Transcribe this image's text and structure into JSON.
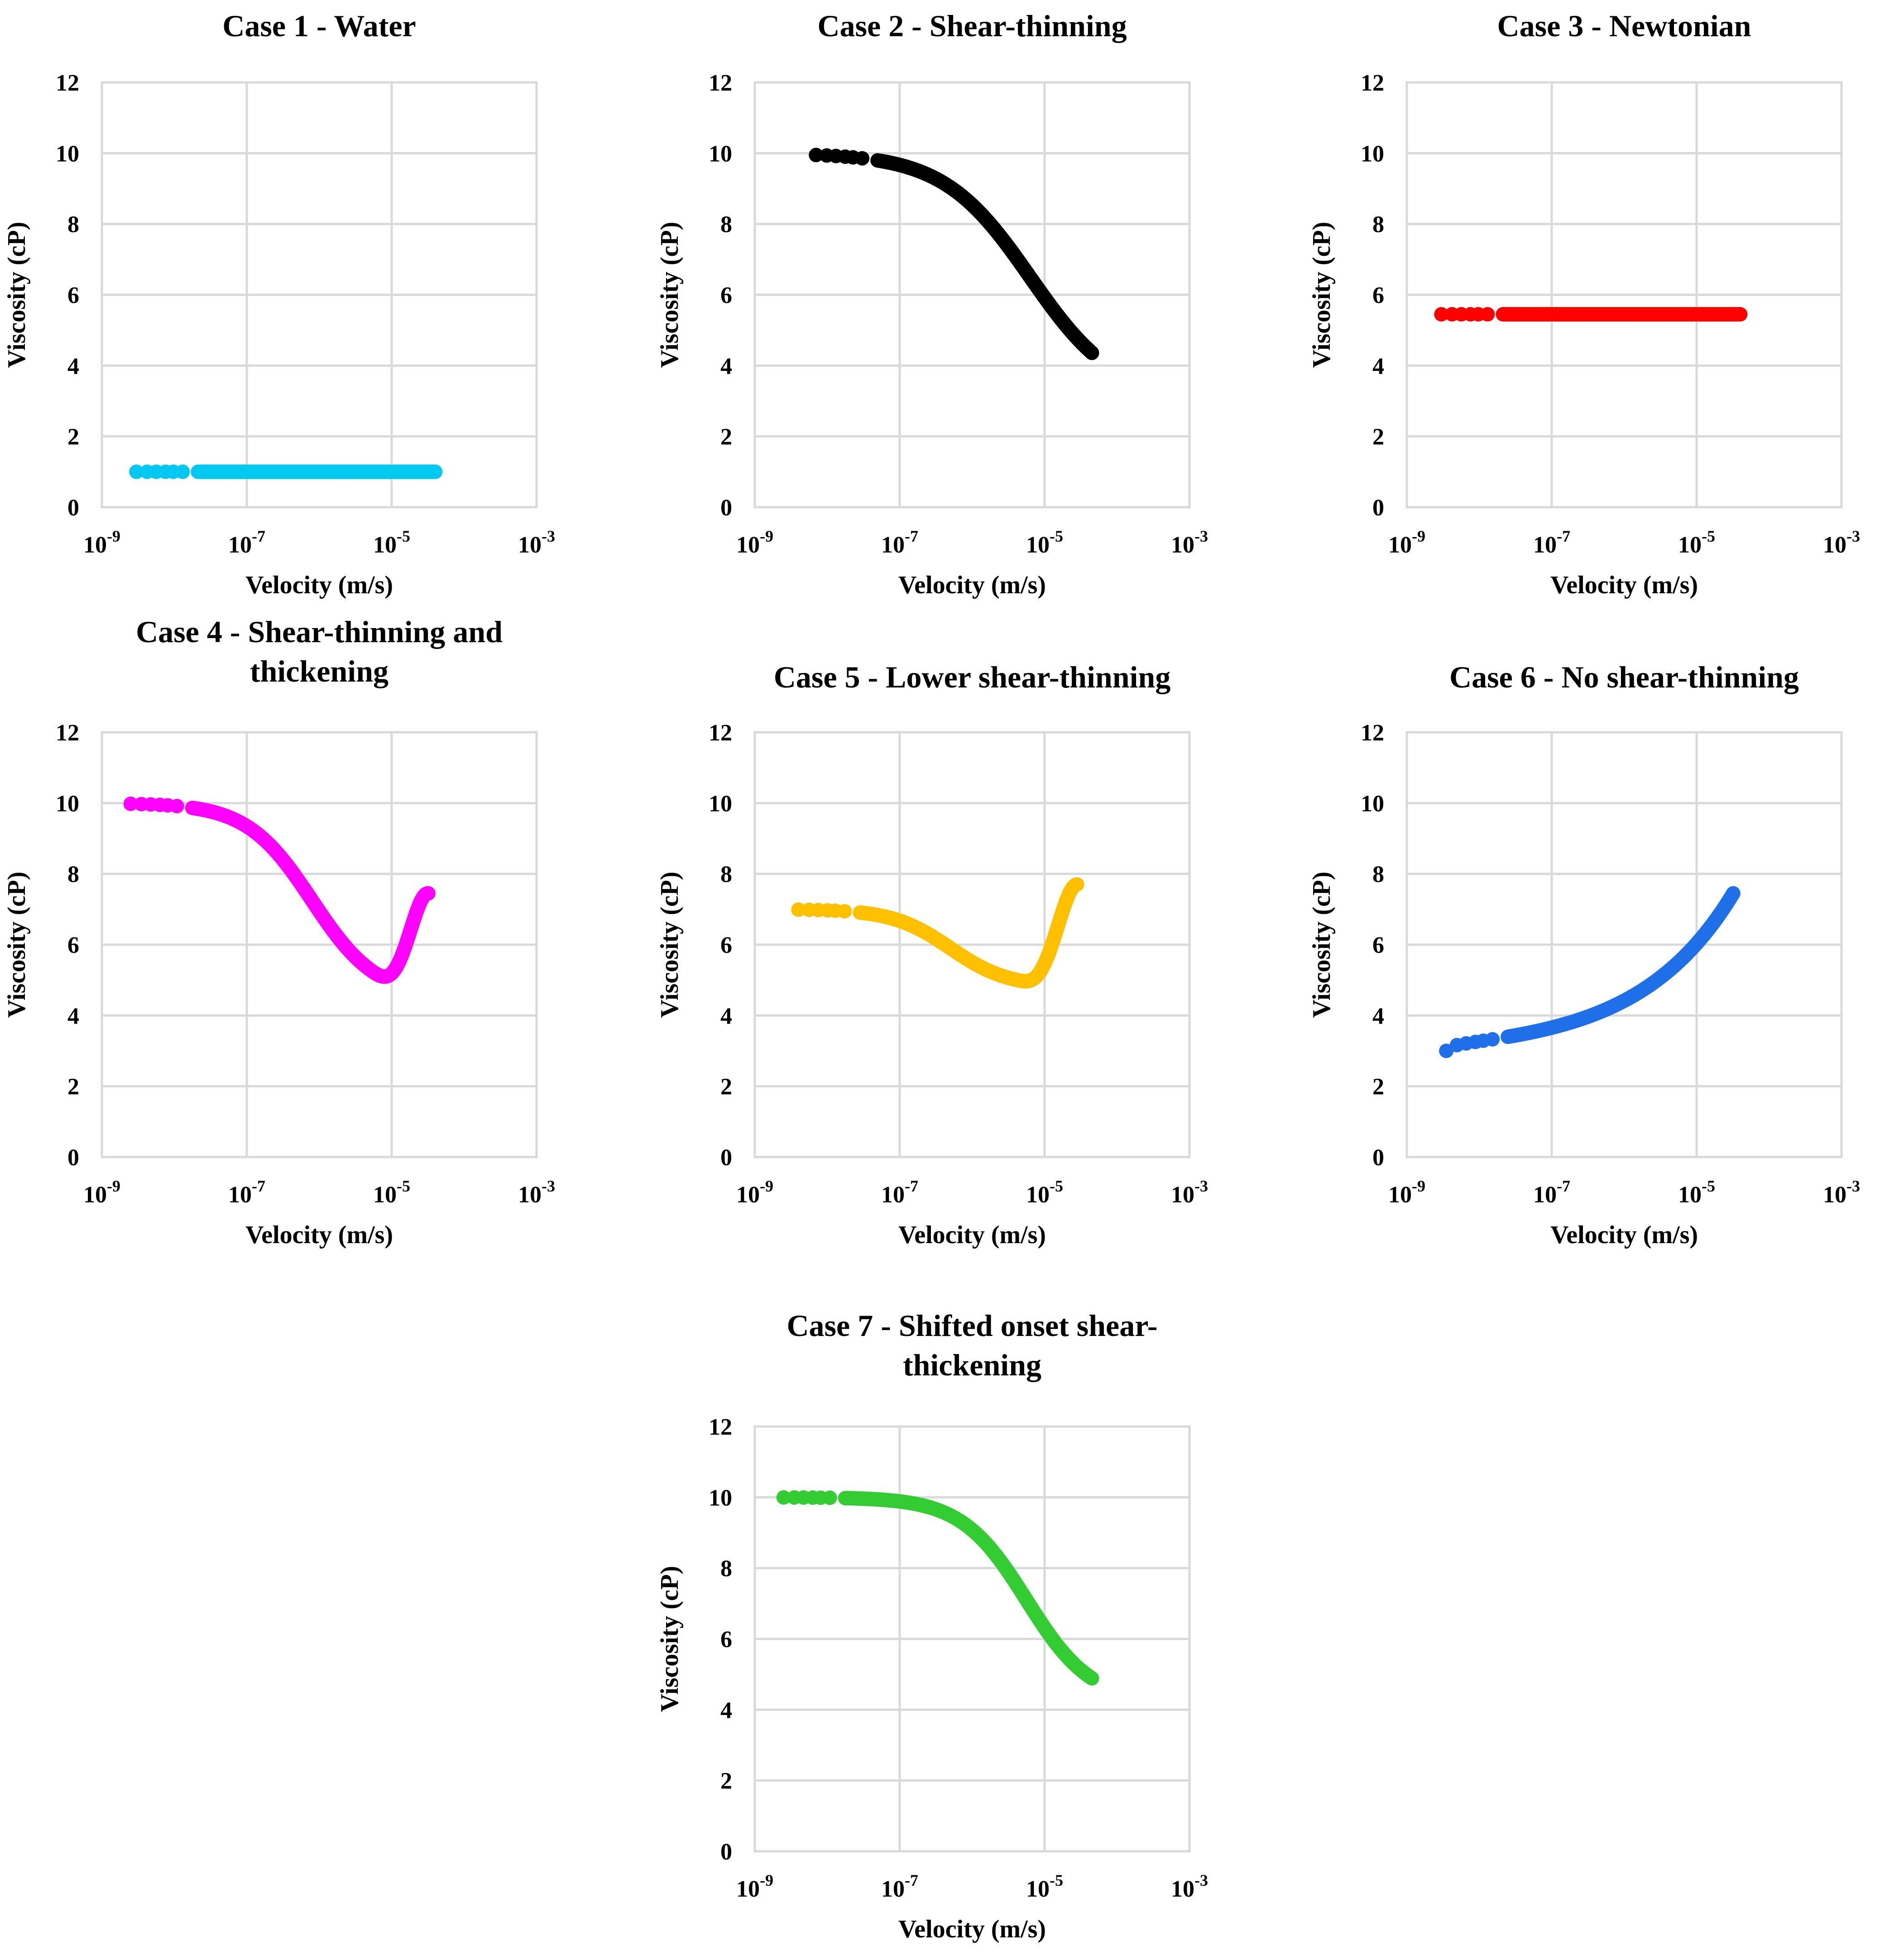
{
  "chart_data": [
    {
      "type": "scatter",
      "title": [
        "Case 1 - Water"
      ],
      "xlabel": "Velocity (m/s)",
      "ylabel": "Viscosity (cP)",
      "xscale": "log",
      "xlim": [
        1e-09,
        0.001
      ],
      "ylim": [
        0,
        12
      ],
      "xticks": [
        {
          "base": "10",
          "exp": "-9"
        },
        {
          "base": "10",
          "exp": "-7"
        },
        {
          "base": "10",
          "exp": "-5"
        },
        {
          "base": "10",
          "exp": "-3"
        }
      ],
      "yticks": [
        "0",
        "2",
        "4",
        "6",
        "8",
        "10",
        "12"
      ],
      "grid": true,
      "color": "#00c8f0",
      "series": [
        {
          "name": "Case 1",
          "model": "constant",
          "params": {
            "mu": 1.0
          },
          "x_range": [
            3e-09,
            4e-05
          ]
        }
      ]
    },
    {
      "type": "scatter",
      "title": [
        "Case 2 - Shear-thinning"
      ],
      "xlabel": "Velocity (m/s)",
      "ylabel": "Viscosity (cP)",
      "xscale": "log",
      "xlim": [
        1e-09,
        0.001
      ],
      "ylim": [
        0,
        12
      ],
      "xticks": [
        {
          "base": "10",
          "exp": "-9"
        },
        {
          "base": "10",
          "exp": "-7"
        },
        {
          "base": "10",
          "exp": "-5"
        },
        {
          "base": "10",
          "exp": "-3"
        }
      ],
      "yticks": [
        "0",
        "2",
        "4",
        "6",
        "8",
        "10",
        "12"
      ],
      "grid": true,
      "color": "#000000",
      "series": [
        {
          "name": "Case 2",
          "model": "thinning",
          "params": {
            "mu0": 10,
            "muInf": 3.0,
            "c": -5.2,
            "w": 0.6
          },
          "x_range": [
            7e-09,
            4.5e-05
          ]
        }
      ]
    },
    {
      "type": "scatter",
      "title": [
        "Case 3 - Newtonian"
      ],
      "xlabel": "Velocity (m/s)",
      "ylabel": "Viscosity (cP)",
      "xscale": "log",
      "xlim": [
        1e-09,
        0.001
      ],
      "ylim": [
        0,
        12
      ],
      "xticks": [
        {
          "base": "10",
          "exp": "-9"
        },
        {
          "base": "10",
          "exp": "-7"
        },
        {
          "base": "10",
          "exp": "-5"
        },
        {
          "base": "10",
          "exp": "-3"
        }
      ],
      "yticks": [
        "0",
        "2",
        "4",
        "6",
        "8",
        "10",
        "12"
      ],
      "grid": true,
      "color": "#ff0000",
      "series": [
        {
          "name": "Case 3",
          "model": "constant",
          "params": {
            "mu": 5.45
          },
          "x_range": [
            3e-09,
            4e-05
          ]
        }
      ]
    },
    {
      "type": "scatter",
      "title": [
        "Case 4 - Shear-thinning and",
        "thickening"
      ],
      "xlabel": "Velocity (m/s)",
      "ylabel": "Viscosity (cP)",
      "xscale": "log",
      "xlim": [
        1e-09,
        0.001
      ],
      "ylim": [
        0,
        12
      ],
      "xticks": [
        {
          "base": "10",
          "exp": "-9"
        },
        {
          "base": "10",
          "exp": "-7"
        },
        {
          "base": "10",
          "exp": "-5"
        },
        {
          "base": "10",
          "exp": "-3"
        }
      ],
      "yticks": [
        "0",
        "2",
        "4",
        "6",
        "8",
        "10",
        "12"
      ],
      "grid": true,
      "color": "#ff00ff",
      "series": [
        {
          "name": "Case 4",
          "model": "thin_thick",
          "params": {
            "mu0": 10,
            "muMin": 4.5,
            "c": -6.1,
            "w": 0.45,
            "thickStart": -5.3,
            "thickEnd": -4.5,
            "muEnd": 7.45
          },
          "x_range": [
            2.5e-09,
            3.2e-05
          ]
        }
      ]
    },
    {
      "type": "scatter",
      "title": [
        "Case 5 - Lower shear-thinning"
      ],
      "xlabel": "Velocity (m/s)",
      "ylabel": "Viscosity (cP)",
      "xscale": "log",
      "xlim": [
        1e-09,
        0.001
      ],
      "ylim": [
        0,
        12
      ],
      "xticks": [
        {
          "base": "10",
          "exp": "-9"
        },
        {
          "base": "10",
          "exp": "-7"
        },
        {
          "base": "10",
          "exp": "-5"
        },
        {
          "base": "10",
          "exp": "-3"
        }
      ],
      "yticks": [
        "0",
        "2",
        "4",
        "6",
        "8",
        "10",
        "12"
      ],
      "grid": true,
      "color": "#ffc000",
      "series": [
        {
          "name": "Case 5",
          "model": "thin_thick",
          "params": {
            "mu0": 7.0,
            "muMin": 4.8,
            "c": -6.3,
            "w": 0.4,
            "thickStart": -5.4,
            "thickEnd": -4.55,
            "muEnd": 7.7
          },
          "x_range": [
            4e-09,
            2.8e-05
          ]
        }
      ]
    },
    {
      "type": "scatter",
      "title": [
        "Case 6 - No shear-thinning"
      ],
      "xlabel": "Velocity (m/s)",
      "ylabel": "Viscosity (cP)",
      "xscale": "log",
      "xlim": [
        1e-09,
        0.001
      ],
      "ylim": [
        0,
        12
      ],
      "xticks": [
        {
          "base": "10",
          "exp": "-9"
        },
        {
          "base": "10",
          "exp": "-7"
        },
        {
          "base": "10",
          "exp": "-5"
        },
        {
          "base": "10",
          "exp": "-3"
        }
      ],
      "yticks": [
        "0",
        "2",
        "4",
        "6",
        "8",
        "10",
        "12"
      ],
      "grid": true,
      "color": "#1f6fe8",
      "series": [
        {
          "name": "Case 6",
          "model": "thickening",
          "params": {
            "mu0": 3.0,
            "muEnd": 7.45,
            "p": 0.33
          },
          "x_range": [
            3.5e-09,
            3.2e-05
          ]
        }
      ]
    },
    {
      "type": "scatter",
      "title": [
        "Case 7 - Shifted onset shear-",
        "thickening"
      ],
      "xlabel": "Velocity (m/s)",
      "ylabel": "Viscosity (cP)",
      "xscale": "log",
      "xlim": [
        1e-09,
        0.001
      ],
      "ylim": [
        0,
        12
      ],
      "xticks": [
        {
          "base": "10",
          "exp": "-9"
        },
        {
          "base": "10",
          "exp": "-7"
        },
        {
          "base": "10",
          "exp": "-5"
        },
        {
          "base": "10",
          "exp": "-3"
        }
      ],
      "yticks": [
        "0",
        "2",
        "4",
        "6",
        "8",
        "10",
        "12"
      ],
      "grid": true,
      "color": "#33cc33",
      "series": [
        {
          "name": "Case 7",
          "model": "thinning",
          "params": {
            "mu0": 10,
            "muInf": 4.2,
            "c": -5.25,
            "w": 0.45
          },
          "x_range": [
            2.5e-09,
            4.5e-05
          ]
        }
      ]
    }
  ]
}
